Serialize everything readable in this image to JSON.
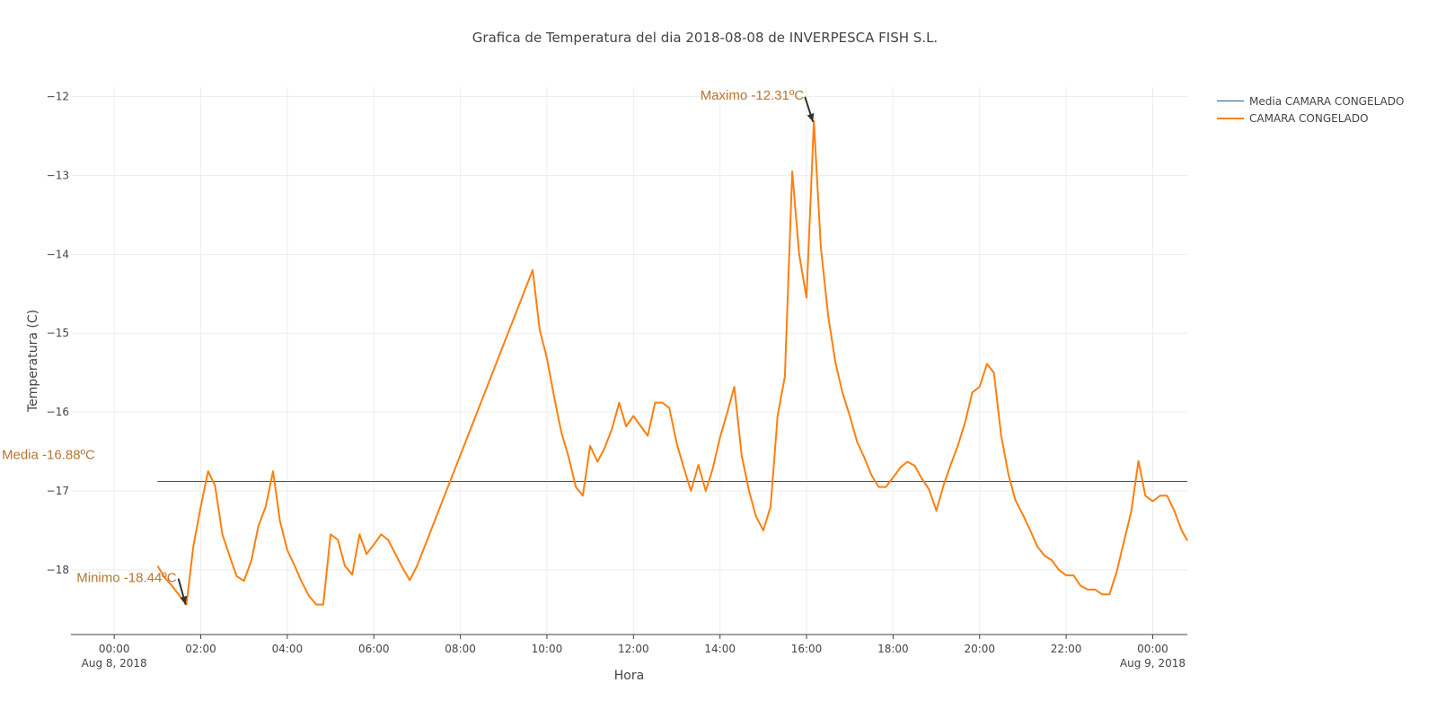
{
  "title": "Grafica de Temperatura del dia 2018-08-08 de INVERPESCA FISH S.L.",
  "colors": {
    "media_line": "#1f5f95",
    "camara_line": "#ff7f0e",
    "annotation_text": "#b8742e",
    "arrow": "#333333",
    "grid": "#eeeeee",
    "axis": "#444444"
  },
  "legend": [
    {
      "name": "Media CAMARA CONGELADO"
    },
    {
      "name": "CAMARA CONGELADO"
    }
  ],
  "annotations": {
    "maximo": "Maximo -12.31ºC",
    "minimo": "Minimo -18.44ºC",
    "media": "Media -16.88ºC"
  },
  "chart_data": {
    "type": "line",
    "xlabel": "Hora",
    "ylabel": "Temperatura (C)",
    "xlim": [
      -1.0,
      24.8
    ],
    "ylim": [
      -18.82,
      -11.88
    ],
    "x_ticks": [
      {
        "x": 0,
        "label": "00:00",
        "sublabel": "Aug 8, 2018"
      },
      {
        "x": 2,
        "label": "02:00"
      },
      {
        "x": 4,
        "label": "04:00"
      },
      {
        "x": 6,
        "label": "06:00"
      },
      {
        "x": 8,
        "label": "08:00"
      },
      {
        "x": 10,
        "label": "10:00"
      },
      {
        "x": 12,
        "label": "12:00"
      },
      {
        "x": 14,
        "label": "14:00"
      },
      {
        "x": 16,
        "label": "16:00"
      },
      {
        "x": 18,
        "label": "18:00"
      },
      {
        "x": 20,
        "label": "20:00"
      },
      {
        "x": 22,
        "label": "22:00"
      },
      {
        "x": 24,
        "label": "00:00",
        "sublabel": "Aug 9, 2018"
      }
    ],
    "y_ticks": [
      -12,
      -13,
      -14,
      -15,
      -16,
      -17,
      -18
    ],
    "y_tick_labels": [
      "−12",
      "−13",
      "−14",
      "−15",
      "−16",
      "−17",
      "−18"
    ],
    "maximo_point": {
      "x": 16.17,
      "y": -12.31
    },
    "minimo_point": {
      "x": 1.67,
      "y": -18.44
    },
    "series": [
      {
        "name": "Media CAMARA CONGELADO",
        "x": [
          1.0,
          24.8
        ],
        "y": [
          -16.88,
          -16.88
        ]
      },
      {
        "name": "CAMARA CONGELADO",
        "x": [
          1.0,
          1.17,
          1.33,
          1.5,
          1.67,
          1.83,
          2.0,
          2.17,
          2.33,
          2.5,
          2.67,
          2.83,
          3.0,
          3.17,
          3.33,
          3.5,
          3.67,
          3.83,
          4.0,
          4.17,
          4.33,
          4.5,
          4.67,
          4.83,
          5.0,
          5.17,
          5.33,
          5.5,
          5.67,
          5.83,
          6.0,
          6.17,
          6.33,
          6.5,
          6.67,
          6.83,
          7.0,
          9.67,
          9.83,
          10.0,
          10.17,
          10.33,
          10.5,
          10.67,
          10.83,
          11.0,
          11.17,
          11.33,
          11.5,
          11.67,
          11.83,
          12.0,
          12.17,
          12.33,
          12.5,
          12.67,
          12.83,
          13.0,
          13.17,
          13.33,
          13.5,
          13.67,
          13.83,
          14.0,
          14.17,
          14.33,
          14.5,
          14.67,
          14.83,
          15.0,
          15.17,
          15.33,
          15.5,
          15.67,
          15.83,
          16.0,
          16.17,
          16.33,
          16.5,
          16.67,
          16.83,
          17.0,
          17.17,
          17.33,
          17.5,
          17.67,
          17.83,
          18.0,
          18.17,
          18.33,
          18.5,
          18.67,
          18.83,
          19.0,
          19.17,
          19.33,
          19.5,
          19.67,
          19.83,
          20.0,
          20.17,
          20.33,
          20.5,
          20.67,
          20.83,
          21.0,
          21.17,
          21.33,
          21.5,
          21.67,
          21.83,
          22.0,
          22.17,
          22.33,
          22.5,
          22.67,
          22.83,
          23.0,
          23.17,
          23.33,
          23.5,
          23.67,
          23.83,
          24.0,
          24.17,
          24.33,
          24.5,
          24.67,
          24.83
        ],
        "y": [
          -17.95,
          -18.1,
          -18.2,
          -18.32,
          -18.44,
          -17.7,
          -17.2,
          -16.75,
          -16.93,
          -17.55,
          -17.83,
          -18.08,
          -18.14,
          -17.88,
          -17.45,
          -17.2,
          -16.75,
          -17.38,
          -17.75,
          -17.95,
          -18.15,
          -18.33,
          -18.44,
          -18.44,
          -17.55,
          -17.62,
          -17.95,
          -18.06,
          -17.55,
          -17.8,
          -17.68,
          -17.55,
          -17.62,
          -17.8,
          -17.98,
          -18.13,
          -17.95,
          -14.2,
          -14.95,
          -15.32,
          -15.82,
          -16.25,
          -16.57,
          -16.95,
          -17.06,
          -16.43,
          -16.63,
          -16.46,
          -16.22,
          -15.88,
          -16.18,
          -16.05,
          -16.18,
          -16.3,
          -15.88,
          -15.88,
          -15.95,
          -16.4,
          -16.72,
          -17.0,
          -16.67,
          -17.0,
          -16.72,
          -16.32,
          -16.0,
          -15.68,
          -16.55,
          -17.0,
          -17.32,
          -17.5,
          -17.2,
          -16.05,
          -15.55,
          -12.95,
          -14.0,
          -14.55,
          -12.31,
          -13.9,
          -14.78,
          -15.38,
          -15.75,
          -16.05,
          -16.38,
          -16.57,
          -16.8,
          -16.95,
          -16.95,
          -16.83,
          -16.7,
          -16.63,
          -16.68,
          -16.85,
          -16.98,
          -17.25,
          -16.92,
          -16.67,
          -16.42,
          -16.12,
          -15.75,
          -15.68,
          -15.39,
          -15.5,
          -16.3,
          -16.8,
          -17.12,
          -17.3,
          -17.5,
          -17.7,
          -17.82,
          -17.88,
          -18.0,
          -18.07,
          -18.07,
          -18.2,
          -18.25,
          -18.25,
          -18.31,
          -18.31,
          -18.02,
          -17.65,
          -17.27,
          -16.62,
          -17.06,
          -17.13,
          -17.06,
          -17.06,
          -17.25,
          -17.5,
          -17.63
        ]
      }
    ]
  }
}
